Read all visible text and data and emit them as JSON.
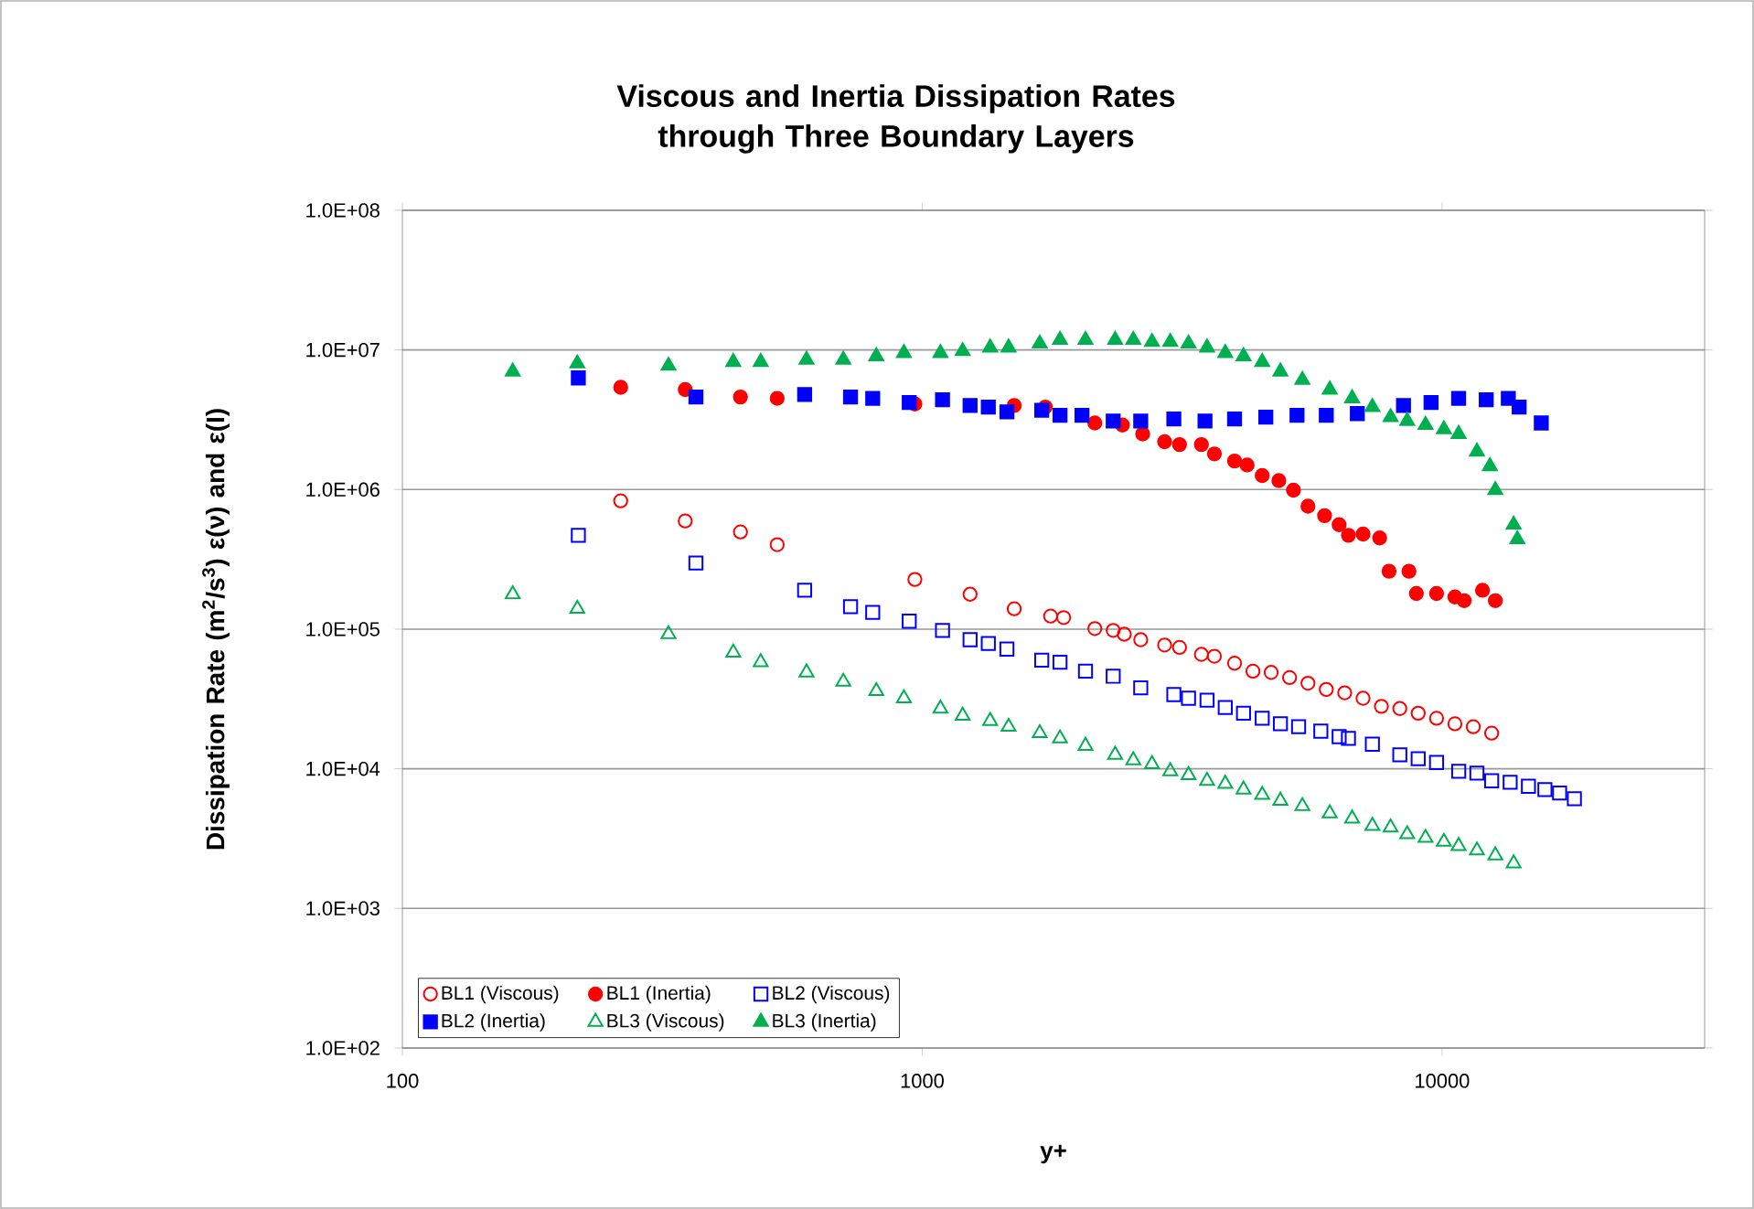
{
  "chart_data": {
    "type": "scatter",
    "title": "Viscous and Inertia Dissipation  Rates through Three Boundary  Layers",
    "xlabel": "y+",
    "ylabel": "Dissipation Rate (m$^{2}$/s$^{3}$) ε(ν) and ε(Ι)",
    "log": "xy",
    "grid": "y",
    "legend": "bottom",
    "xlim": [
      100,
      32000
    ],
    "ylim": [
      100,
      100000000
    ],
    "xticks": [
      100,
      1000,
      10000
    ],
    "yticks": [
      {
        "value": 100,
        "label": "1.0E+02"
      },
      {
        "value": 1000,
        "label": "1.0E+03"
      },
      {
        "value": 10000,
        "label": "1.0E+04"
      },
      {
        "value": 100000,
        "label": "1.0E+05"
      },
      {
        "value": 1000000,
        "label": "1.0E+06"
      },
      {
        "value": 10000000,
        "label": "1.0E+07"
      },
      {
        "value": 100000000,
        "label": "1.0E+08"
      }
    ],
    "series": [
      {
        "name": "BL1 (Viscous)",
        "color": "#ff0000",
        "marker": "circle-open",
        "x": [
          263,
          350,
          447,
          526,
          968,
          1236,
          1503,
          1766,
          1871,
          2148,
          2330,
          2447,
          2632,
          2926,
          3126,
          3444,
          3648,
          3989,
          4327,
          4691,
          5089,
          5521,
          5988,
          6497,
          7047,
          7645,
          8293,
          8996,
          9759,
          10585,
          11483,
          12456
        ],
        "values": [
          830000,
          596000,
          497000,
          403000,
          227000,
          178000,
          140000,
          124000,
          121000,
          101000,
          98000,
          92000,
          84000,
          77000,
          74000,
          66000,
          64000,
          57000,
          50000,
          49000,
          45000,
          41000,
          37000,
          35000,
          32000,
          28000,
          27000,
          25000,
          23000,
          21000,
          20000,
          18000
        ]
      },
      {
        "name": "BL1 (Inertia)",
        "color": "#ff0000",
        "marker": "circle",
        "x": [
          263,
          350,
          447,
          526,
          968,
          1503,
          1725,
          2148,
          2427,
          2655,
          2926,
          3126,
          3444,
          3648,
          3989,
          4217,
          4508,
          4853,
          5178,
          5521,
          5943,
          6339,
          6605,
          7047,
          7586,
          7907,
          8636,
          8925,
          9759,
          10585,
          11030,
          11960,
          12660
        ],
        "values": [
          5400000,
          5200000,
          4600000,
          4500000,
          4100000,
          4000000,
          3900000,
          3000000,
          2900000,
          2500000,
          2200000,
          2100000,
          2100000,
          1800000,
          1600000,
          1500000,
          1260000,
          1160000,
          990000,
          760000,
          650000,
          560000,
          470000,
          480000,
          450000,
          260000,
          260000,
          180000,
          180000,
          170000,
          160000,
          190000,
          160000
        ]
      },
      {
        "name": "BL2 (Viscous)",
        "color": "#0000ff",
        "marker": "square-open",
        "x": [
          218,
          367,
          594,
          728,
          803,
          944,
          1094,
          1236,
          1340,
          1455,
          1698,
          1841,
          2061,
          2330,
          2632,
          3048,
          3253,
          3531,
          3828,
          4150,
          4508,
          4887,
          5297,
          5845,
          6339,
          6605,
          7345,
          8293,
          8996,
          9759,
          10765,
          11668,
          12456,
          13520,
          14660,
          15770,
          16830,
          17970
        ],
        "values": [
          470000,
          298000,
          190000,
          145000,
          132000,
          114000,
          98000,
          84000,
          79000,
          72000,
          60000,
          58000,
          50000,
          46000,
          38000,
          34000,
          32000,
          31000,
          27500,
          25000,
          23000,
          21000,
          20000,
          18600,
          17000,
          16500,
          15000,
          12600,
          11800,
          11100,
          9600,
          9300,
          8200,
          8000,
          7500,
          7100,
          6700,
          6100
        ]
      },
      {
        "name": "BL2 (Inertia)",
        "color": "#0000ff",
        "marker": "square",
        "x": [
          218,
          367,
          594,
          728,
          803,
          944,
          1094,
          1236,
          1340,
          1455,
          1698,
          1841,
          2029,
          2330,
          2632,
          3048,
          3499,
          3989,
          4581,
          5260,
          5988,
          6871,
          8430,
          9524,
          10760,
          12160,
          13410,
          14070,
          15520
        ],
        "values": [
          6300000,
          4600000,
          4800000,
          4600000,
          4500000,
          4200000,
          4400000,
          4000000,
          3900000,
          3600000,
          3700000,
          3400000,
          3400000,
          3100000,
          3100000,
          3200000,
          3100000,
          3200000,
          3300000,
          3400000,
          3400000,
          3500000,
          4000000,
          4200000,
          4500000,
          4400000,
          4500000,
          3900000,
          3000000
        ]
      },
      {
        "name": "BL3 (Viscous)",
        "color": "#00b050",
        "marker": "triangle-open",
        "x": [
          163,
          217,
          325,
          433,
          489,
          599,
          705,
          816,
          922,
          1084,
          1196,
          1351,
          1466,
          1683,
          1841,
          2061,
          2350,
          2547,
          2767,
          3000,
          3253,
          3531,
          3828,
          4150,
          4508,
          4887,
          5386,
          6081,
          6714,
          7345,
          7962,
          8569,
          9294,
          10080,
          10760,
          11670,
          12660,
          13730
        ],
        "values": [
          178000,
          140000,
          92000,
          68000,
          58000,
          49000,
          42000,
          36000,
          32000,
          27000,
          24000,
          22000,
          20000,
          18000,
          16500,
          14600,
          12600,
          11500,
          10800,
          9600,
          9000,
          8200,
          7800,
          7100,
          6500,
          5900,
          5400,
          4800,
          4400,
          3900,
          3800,
          3400,
          3200,
          3000,
          2800,
          2600,
          2400,
          2100
        ]
      },
      {
        "name": "BL3 (Inertia)",
        "color": "#00b050",
        "marker": "triangle",
        "x": [
          163,
          217,
          325,
          433,
          489,
          599,
          705,
          816,
          922,
          1084,
          1196,
          1351,
          1466,
          1683,
          1841,
          2061,
          2350,
          2547,
          2767,
          3000,
          3253,
          3531,
          3828,
          4150,
          4508,
          4887,
          5386,
          6081,
          6714,
          7345,
          7962,
          8569,
          9294,
          10080,
          10760,
          11670,
          12360,
          12660,
          13730,
          13960
        ],
        "values": [
          7000000,
          8000000,
          7700000,
          8200000,
          8200000,
          8500000,
          8500000,
          9000000,
          9500000,
          9500000,
          9800000,
          10400000,
          10400000,
          11100000,
          11800000,
          11800000,
          11800000,
          11800000,
          11400000,
          11400000,
          11100000,
          10400000,
          9500000,
          9000000,
          8200000,
          7000000,
          6100000,
          5200000,
          4500000,
          3900000,
          3300000,
          3100000,
          2900000,
          2700000,
          2500000,
          1870000,
          1470000,
          990000,
          560000,
          440000
        ]
      }
    ]
  }
}
